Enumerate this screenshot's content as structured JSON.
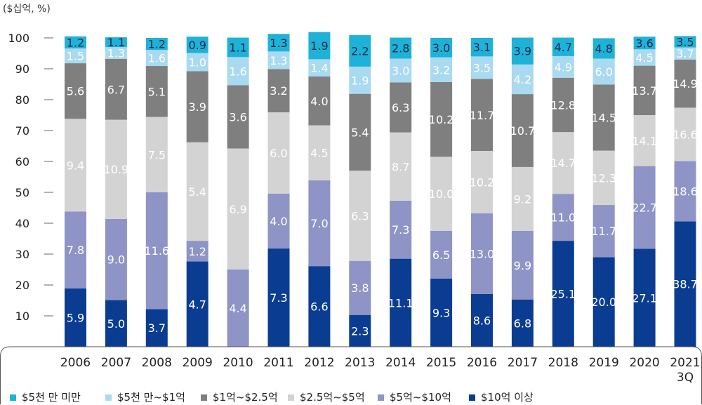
{
  "chart_data": {
    "type": "bar",
    "stacked": true,
    "unit_label": "($십억, %)",
    "ylim": [
      0,
      100
    ],
    "yticks": [
      10,
      20,
      30,
      40,
      50,
      60,
      70,
      80,
      90,
      100
    ],
    "categories": [
      "2006",
      "2007",
      "2008",
      "2009",
      "2010",
      "2011",
      "2012",
      "2013",
      "2014",
      "2015",
      "2016",
      "2017",
      "2018",
      "2019",
      "2020",
      "2021\n3Q"
    ],
    "series": [
      {
        "name": "$10억 이상",
        "color": "#0a3d91",
        "label_color": "#ffffff",
        "values": [
          18.9,
          15.1,
          12.2,
          27.6,
          0,
          31.8,
          26.1,
          10.3,
          28.5,
          22.1,
          17.1,
          15.3,
          34.3,
          29.0,
          31.7,
          40.6
        ],
        "labels": [
          "5.9",
          "5.0",
          "3.7",
          "4.7",
          "",
          "7.3",
          "6.6",
          "2.3",
          "11.1",
          "9.3",
          "8.6",
          "6.8",
          "25.1",
          "20.0",
          "27.1",
          "38.7"
        ]
      },
      {
        "name": "$5억~$10억",
        "color": "#8e94c6",
        "label_color": "#ffffff",
        "values": [
          24.9,
          26.3,
          37.8,
          6.7,
          25.0,
          17.8,
          27.8,
          17.5,
          18.8,
          15.4,
          26.1,
          22.2,
          15.2,
          16.9,
          26.8,
          19.5
        ],
        "labels": [
          "7.8",
          "9.0",
          "11.6",
          "1.2",
          "4.4",
          "4.0",
          "7.0",
          "3.8",
          "7.3",
          "6.5",
          "13.0",
          "9.9",
          "11.0",
          "11.7",
          "22.7",
          "18.6"
        ]
      },
      {
        "name": "$2.5억~$5억",
        "color": "#d3d3d3",
        "label_color": "#ffffff",
        "values": [
          30.0,
          32.1,
          24.4,
          31.9,
          39.2,
          26.3,
          17.8,
          29.2,
          22.1,
          24.0,
          20.2,
          20.7,
          20.0,
          17.6,
          16.5,
          17.3
        ],
        "labels": [
          "9.4",
          "10.9",
          "7.5",
          "5.4",
          "6.9",
          "6.0",
          "4.5",
          "6.3",
          "8.7",
          "10.0",
          "10.2",
          "9.2",
          "14.7",
          "12.3",
          "14.1",
          "16.6"
        ]
      },
      {
        "name": "$1억~$2.5억",
        "color": "#7f7f7f",
        "label_color": "#ffffff",
        "values": [
          18.0,
          19.7,
          16.5,
          23.0,
          20.5,
          14.0,
          15.8,
          24.9,
          16.2,
          24.2,
          23.3,
          23.6,
          17.6,
          21.4,
          16.0,
          15.6
        ],
        "labels": [
          "5.6",
          "6.7",
          "5.1",
          "3.9",
          "3.6",
          "3.2",
          "4.0",
          "5.4",
          "6.3",
          "10.2",
          "11.7",
          "10.7",
          "12.8",
          "14.5",
          "13.7",
          "14.9"
        ]
      },
      {
        "name": "$5천 만~$1억",
        "color": "#a9daf0",
        "label_color": "#ffffff",
        "values": [
          4.8,
          3.8,
          5.2,
          5.9,
          9.1,
          5.7,
          5.6,
          8.8,
          7.7,
          8.0,
          7.3,
          9.6,
          7.0,
          8.4,
          5.3,
          3.9
        ],
        "labels": [
          "1.5",
          "1.3",
          "1.6",
          "1.0",
          "1.6",
          "1.3",
          "1.4",
          "1.9",
          "3.0",
          "3.2",
          "3.5",
          "4.2",
          "4.9",
          "6.0",
          "4.5",
          "3.7"
        ]
      },
      {
        "name": "$5천 만 미만",
        "color": "#1fb2d9",
        "label_color": "#1f2a44",
        "values": [
          3.9,
          3.2,
          3.9,
          5.3,
          6.3,
          5.7,
          8.8,
          10.2,
          6.8,
          6.3,
          6.0,
          8.7,
          6.0,
          6.6,
          4.1,
          3.7
        ],
        "labels": [
          "1.2",
          "1.1",
          "1.2",
          "0.9",
          "1.1",
          "1.3",
          "1.9",
          "2.2",
          "2.8",
          "3.0",
          "3.1",
          "3.9",
          "4.7",
          "4.8",
          "3.6",
          "3.5"
        ]
      }
    ]
  }
}
